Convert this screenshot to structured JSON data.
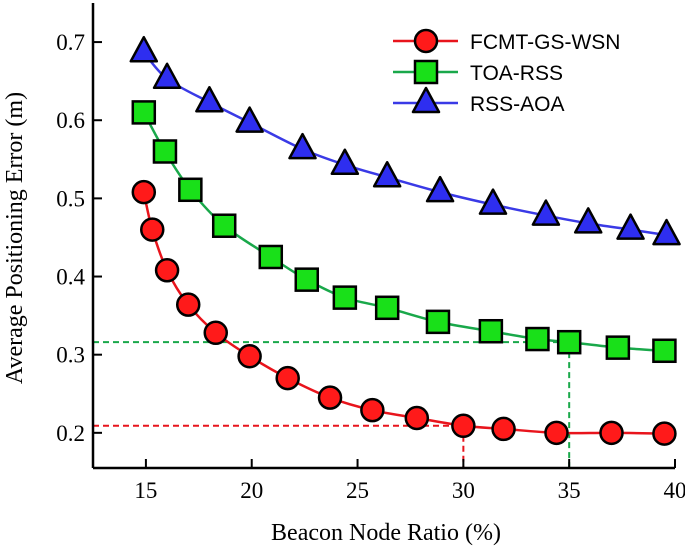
{
  "chart_data": {
    "type": "line",
    "title": "",
    "xlabel": "Beacon Node Ratio (%)",
    "ylabel": "Average Positioning Error (m)",
    "xlim": [
      12.5,
      40
    ],
    "ylim": [
      0.155,
      0.75
    ],
    "xticks": [
      "15",
      "20",
      "25",
      "30",
      "35",
      "40"
    ],
    "yticks": [
      "0.2",
      "0.3",
      "0.4",
      "0.5",
      "0.6",
      "0.7"
    ],
    "legend_position": "top-right",
    "series": [
      {
        "name": "FCMT-GS-WSN",
        "color": "#e8141c",
        "marker_fill": "#ff1a1a",
        "marker": "circle",
        "x": [
          14.9,
          15.3,
          16.0,
          17.0,
          18.3,
          19.9,
          21.7,
          23.7,
          25.7,
          27.8,
          30.0,
          31.9,
          34.4,
          37.0,
          39.5
        ],
        "y": [
          0.508,
          0.46,
          0.408,
          0.364,
          0.328,
          0.298,
          0.27,
          0.245,
          0.229,
          0.219,
          0.209,
          0.205,
          0.2,
          0.2,
          0.199
        ]
      },
      {
        "name": "TOA-RSS",
        "color": "#19a84a",
        "marker_fill": "#19e019",
        "marker": "square",
        "x": [
          14.9,
          15.9,
          17.1,
          18.7,
          20.9,
          22.6,
          24.4,
          26.4,
          28.8,
          31.3,
          33.5,
          35.0,
          37.3,
          39.5
        ],
        "y": [
          0.61,
          0.56,
          0.511,
          0.465,
          0.425,
          0.396,
          0.373,
          0.36,
          0.342,
          0.33,
          0.32,
          0.316,
          0.309,
          0.305
        ]
      },
      {
        "name": "RSS-AOA",
        "color": "#3a3ae6",
        "marker_fill": "#2e2ef0",
        "marker": "triangle",
        "x": [
          14.9,
          16.0,
          18.0,
          19.9,
          22.4,
          24.4,
          26.4,
          28.9,
          31.4,
          33.9,
          35.9,
          37.9,
          39.6
        ],
        "y": [
          0.687,
          0.653,
          0.623,
          0.597,
          0.563,
          0.543,
          0.527,
          0.508,
          0.492,
          0.478,
          0.468,
          0.46,
          0.453
        ]
      }
    ],
    "annotations": [
      {
        "x": 30,
        "y": 0.209,
        "color": "#e8141c"
      },
      {
        "x": 35,
        "y": 0.316,
        "color": "#19a84a"
      }
    ]
  }
}
